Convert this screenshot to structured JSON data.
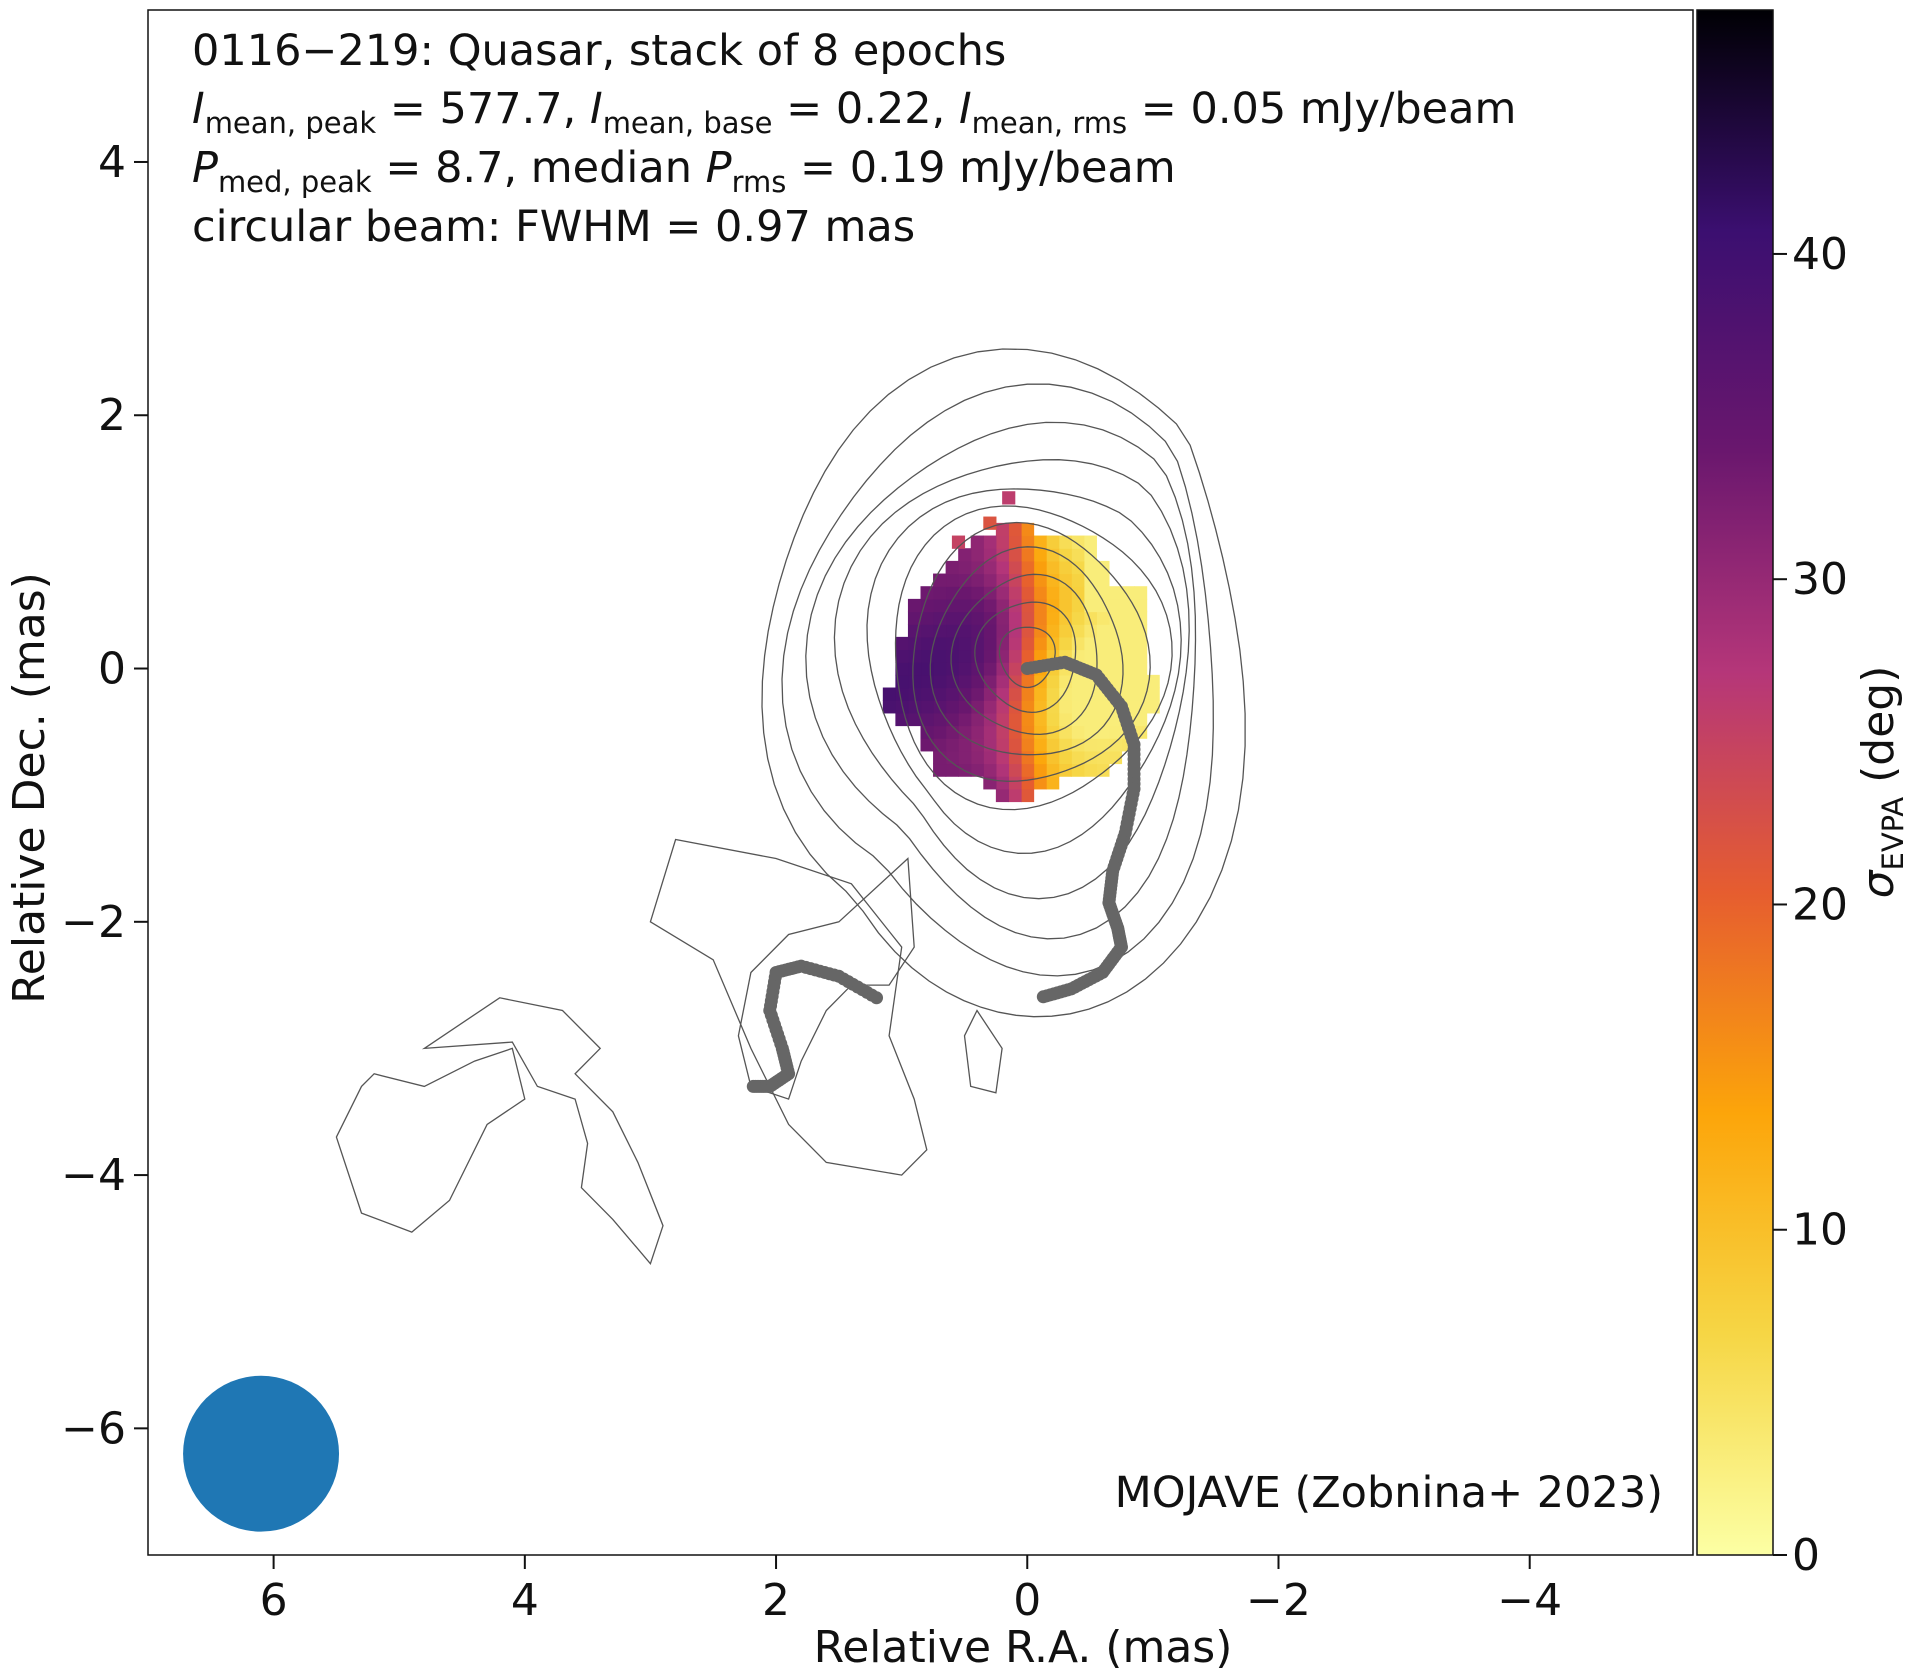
{
  "chart_data": {
    "type": "heatmap",
    "title_lines": {
      "line1": "0116−219: Quasar, stack of 8 epochs",
      "line2": {
        "i1_sym": "I",
        "i1_sub": "mean, peak",
        "i1_val": " = 577.7, ",
        "i2_sym": "I",
        "i2_sub": "mean, base",
        "i2_val": " = 0.22, ",
        "i3_sym": "I",
        "i3_sub": "mean, rms",
        "i3_val": " = 0.05 mJy/beam"
      },
      "line3": {
        "p1_sym": "P",
        "p1_sub": "med, peak",
        "p1_val": " = 8.7, median ",
        "p2_sym": "P",
        "p2_sub": "rms",
        "p2_val": " = 0.19 mJy/beam"
      },
      "line4": "circular beam: FWHM = 0.97 mas"
    },
    "credit": "MOJAVE (Zobnina+ 2023)",
    "xlabel": "Relative R.A. (mas)",
    "ylabel": "Relative Dec. (mas)",
    "xlim": [
      7,
      -5.3
    ],
    "ylim": [
      -7,
      5.2
    ],
    "xticks": [
      6,
      4,
      2,
      0,
      -2,
      -4
    ],
    "yticks": [
      4,
      2,
      0,
      -2,
      -4,
      -6
    ],
    "colorbar": {
      "label_sym": "σ",
      "label_sub": "EVPA",
      "label_rest": " (deg)",
      "range": [
        0,
        47.5
      ],
      "ticks": [
        0,
        10,
        20,
        30,
        40
      ],
      "colormap": "inferno_r",
      "stops": [
        "#fcffa4",
        "#f6d645",
        "#fca50a",
        "#e65d2f",
        "#b53679",
        "#6a176e",
        "#3b0f70",
        "#000004"
      ]
    },
    "heatmap": {
      "cell_size_mas": 0.1,
      "center": [
        0.05,
        0.05
      ],
      "radius": 1.05,
      "gradient": "sigma increases from west (~6 deg) to east (~42 deg)"
    },
    "contours": {
      "color": "#555555",
      "core_center": [
        0.0,
        0.1
      ],
      "core_levels_mas": [
        0.22,
        0.4,
        0.58,
        0.76,
        0.94,
        1.1,
        1.28,
        1.48,
        1.68,
        1.9,
        2.15
      ]
    },
    "ridge_line": {
      "color": "#666666",
      "main": [
        [
          0.0,
          0.0
        ],
        [
          -0.3,
          0.05
        ],
        [
          -0.55,
          -0.05
        ],
        [
          -0.75,
          -0.3
        ],
        [
          -0.85,
          -0.6
        ],
        [
          -0.85,
          -0.95
        ],
        [
          -0.78,
          -1.3
        ],
        [
          -0.68,
          -1.6
        ],
        [
          -0.65,
          -1.85
        ],
        [
          -0.72,
          -2.05
        ],
        [
          -0.75,
          -2.2
        ],
        [
          -0.6,
          -2.4
        ],
        [
          -0.35,
          -2.53
        ],
        [
          -0.1,
          -2.6
        ]
      ],
      "secondary": [
        [
          1.2,
          -2.6
        ],
        [
          1.5,
          -2.43
        ],
        [
          1.8,
          -2.35
        ],
        [
          2.0,
          -2.4
        ],
        [
          2.05,
          -2.7
        ],
        [
          1.95,
          -3.0
        ],
        [
          1.9,
          -3.2
        ],
        [
          2.05,
          -3.3
        ],
        [
          2.2,
          -3.3
        ]
      ]
    },
    "beam": {
      "center": [
        6.1,
        -6.2
      ],
      "fwhm_mas": 0.97,
      "color": "#1f77b4"
    }
  }
}
